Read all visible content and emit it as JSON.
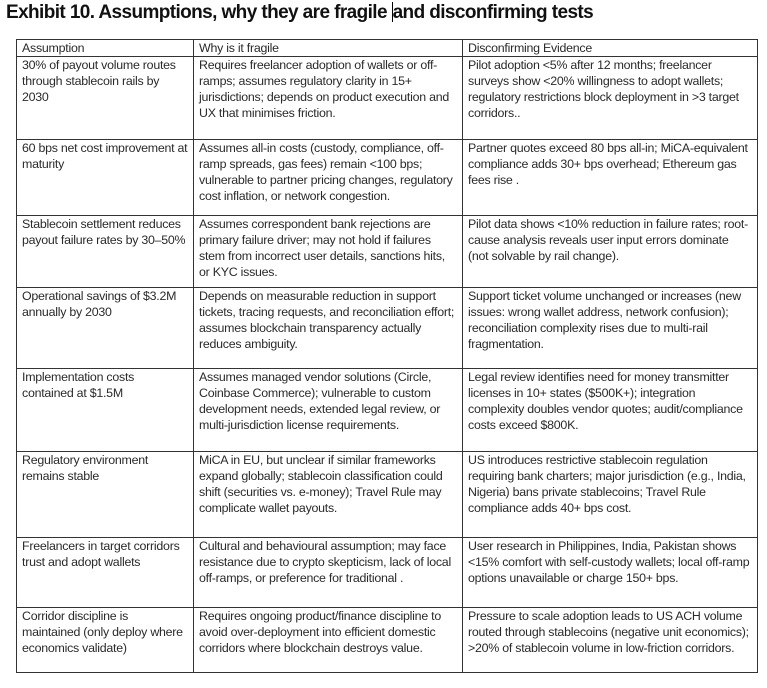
{
  "title_before_caret": "Exhibit 10. Assumptions, why they are fragile ",
  "title_after_caret": "and disconfirming tests",
  "table": {
    "headers": [
      "Assumption",
      "Why is it fragile",
      "Disconfirming Evidence"
    ],
    "rows": [
      [
        "30% of payout volume routes through stablecoin rails by 2030",
        "Requires freelancer adoption of wallets or off-ramps; assumes regulatory clarity in 15+ jurisdictions; depends on product execution and UX that minimises friction.",
        "Pilot adoption <5% after 12 months; freelancer surveys show <20% willingness to adopt wallets; regulatory restrictions block deployment in >3 target corridors.."
      ],
      [
        "60 bps net cost improvement at maturity",
        "Assumes all-in costs (custody, compliance, off-ramp spreads, gas fees) remain <100 bps; vulnerable to partner pricing changes, regulatory cost inflation, or network congestion.",
        "Partner quotes exceed 80 bps all-in; MiCA-equivalent compliance adds 30+ bps overhead; Ethereum gas fees rise ."
      ],
      [
        "Stablecoin settlement reduces payout failure rates by 30–50%",
        "Assumes correspondent bank rejections are primary failure driver; may not hold if failures stem from incorrect user details, sanctions hits, or KYC issues.",
        "Pilot data shows <10% reduction in failure rates; root-cause analysis reveals user input errors dominate (not solvable by rail change)."
      ],
      [
        "Operational savings of $3.2M annually by 2030",
        "Depends on measurable reduction in support tickets, tracing requests, and reconciliation effort; assumes blockchain transparency actually reduces ambiguity.",
        "Support ticket volume unchanged or increases (new issues: wrong wallet address, network confusion); reconciliation complexity rises due to multi-rail fragmentation."
      ],
      [
        "Implementation costs contained at $1.5M",
        "Assumes managed vendor solutions (Circle, Coinbase Commerce); vulnerable to custom development needs, extended legal review, or multi-jurisdiction license requirements.",
        "Legal review identifies need for money transmitter licenses in 10+ states ($500K+); integration complexity doubles vendor quotes; audit/compliance costs exceed $800K."
      ],
      [
        "Regulatory environment remains stable",
        "MiCA in EU, but unclear if similar frameworks expand globally; stablecoin classification could shift (securities vs. e-money); Travel Rule may complicate wallet payouts.",
        "US introduces restrictive stablecoin regulation requiring bank charters; major jurisdiction (e.g., India, Nigeria) bans private stablecoins; Travel Rule compliance adds 40+ bps cost."
      ],
      [
        "Freelancers in target corridors trust and adopt wallets",
        "Cultural and behavioural assumption; may face resistance due to crypto skepticism, lack of local off-ramps, or preference for traditional .",
        "User research in Philippines, India, Pakistan shows <15% comfort with self-custody wallets; local off-ramp options unavailable or charge 150+ bps."
      ],
      [
        "Corridor discipline is maintained (only deploy where economics validate)",
        "Requires ongoing product/finance discipline to avoid over-deployment into efficient domestic corridors where blockchain destroys value.",
        "Pressure to scale adoption leads to US ACH volume routed through stablecoins (negative unit economics); >20% of stablecoin volume in low-friction corridors."
      ]
    ]
  }
}
